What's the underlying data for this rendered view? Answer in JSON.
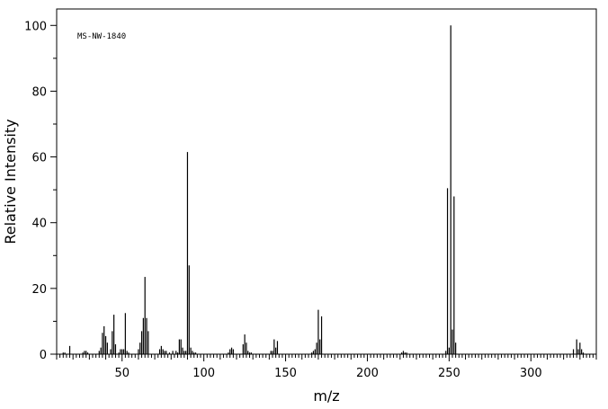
{
  "chart_data": {
    "type": "bar",
    "title": "",
    "annotation": "MS-NW-1840",
    "xlabel": "m/z",
    "ylabel": "Relative Intensity",
    "xlim": [
      10,
      340
    ],
    "ylim": [
      0,
      105
    ],
    "x_ticks": [
      50,
      100,
      150,
      200,
      250,
      300
    ],
    "y_ticks": [
      0,
      20,
      40,
      60,
      80,
      100
    ],
    "grid": false,
    "bar_color": "#000000",
    "series": [
      {
        "x": [
          14,
          15,
          18,
          26,
          27,
          28,
          29,
          36,
          37,
          38,
          39,
          40,
          41,
          43,
          44,
          45,
          46,
          48,
          49,
          50,
          51,
          52,
          53,
          54,
          60,
          61,
          62,
          63,
          64,
          65,
          66,
          73,
          74,
          75,
          76,
          77,
          79,
          81,
          83,
          84,
          85,
          86,
          87,
          88,
          89,
          90,
          91,
          92,
          93,
          94,
          95,
          115,
          116,
          117,
          118,
          124,
          125,
          126,
          127,
          128,
          129,
          141,
          142,
          143,
          144,
          145,
          166,
          167,
          168,
          169,
          170,
          171,
          172,
          221,
          222,
          223,
          224,
          248,
          249,
          250,
          251,
          252,
          253,
          254,
          326,
          328,
          329,
          330,
          331,
          332
        ],
        "y": [
          0.5,
          0.5,
          2.5,
          0.5,
          1,
          1,
          0.5,
          1,
          2,
          6.5,
          8.5,
          5.5,
          3.5,
          1.5,
          7,
          12,
          3,
          0.5,
          1.5,
          1.5,
          1.5,
          12.5,
          1,
          0.5,
          1.5,
          3.5,
          7,
          11,
          23.5,
          11,
          7,
          1.5,
          2.5,
          1.5,
          1,
          1,
          0.5,
          1,
          1,
          0.5,
          4.5,
          4.5,
          2,
          1,
          1,
          61.5,
          27,
          2,
          1,
          0.5,
          0.5,
          0.5,
          1.5,
          2,
          1.5,
          3,
          6,
          3.5,
          1,
          0.5,
          0.5,
          1,
          1,
          4.5,
          2,
          4,
          0.5,
          1,
          1.5,
          3.5,
          13.5,
          4.5,
          11.5,
          0.5,
          1,
          0.5,
          0.5,
          1,
          50.5,
          2,
          100,
          7.5,
          48,
          3.5,
          1.5,
          4.5,
          1.5,
          3.5,
          1.5,
          0.5
        ]
      }
    ]
  }
}
